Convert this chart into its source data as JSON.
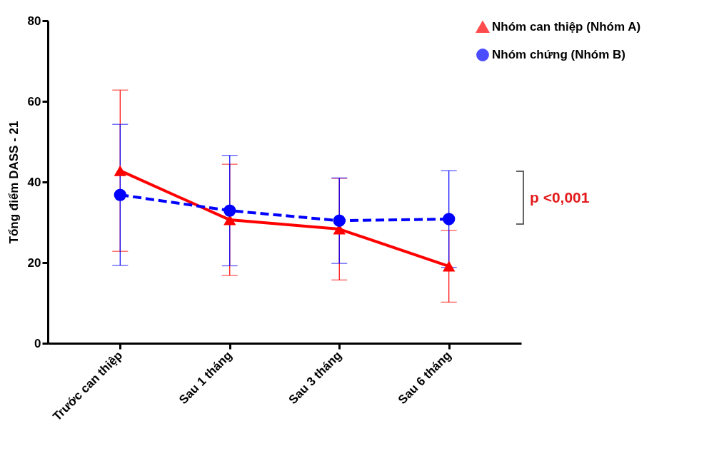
{
  "chart_data": {
    "type": "line",
    "ylabel": "Tổng điểm DASS - 21",
    "categories": [
      "Trước can thiệp",
      "Sau 1 tháng",
      "Sau 3 tháng",
      "Sau 6 tháng"
    ],
    "series": [
      {
        "name": "Nhóm can thiệp (Nhóm A)",
        "color": "#ff0000",
        "values": [
          42.8,
          30.6,
          28.3,
          19.1
        ],
        "errors": [
          20,
          13.8,
          12.6,
          8.9
        ],
        "marker": "triangle",
        "line_style": "solid"
      },
      {
        "name": "Nhóm chứng (Nhóm B)",
        "color": "#0000ff",
        "values": [
          36.8,
          32.9,
          30.4,
          30.8
        ],
        "errors": [
          17.5,
          13.7,
          10.6,
          12
        ],
        "marker": "circle",
        "line_style": "dashed"
      }
    ],
    "ylim": [
      0,
      80
    ],
    "yticks": [
      0,
      20,
      40,
      60,
      80
    ],
    "grid": false,
    "legend": "top right",
    "annotations": [
      "p <0,001"
    ]
  }
}
